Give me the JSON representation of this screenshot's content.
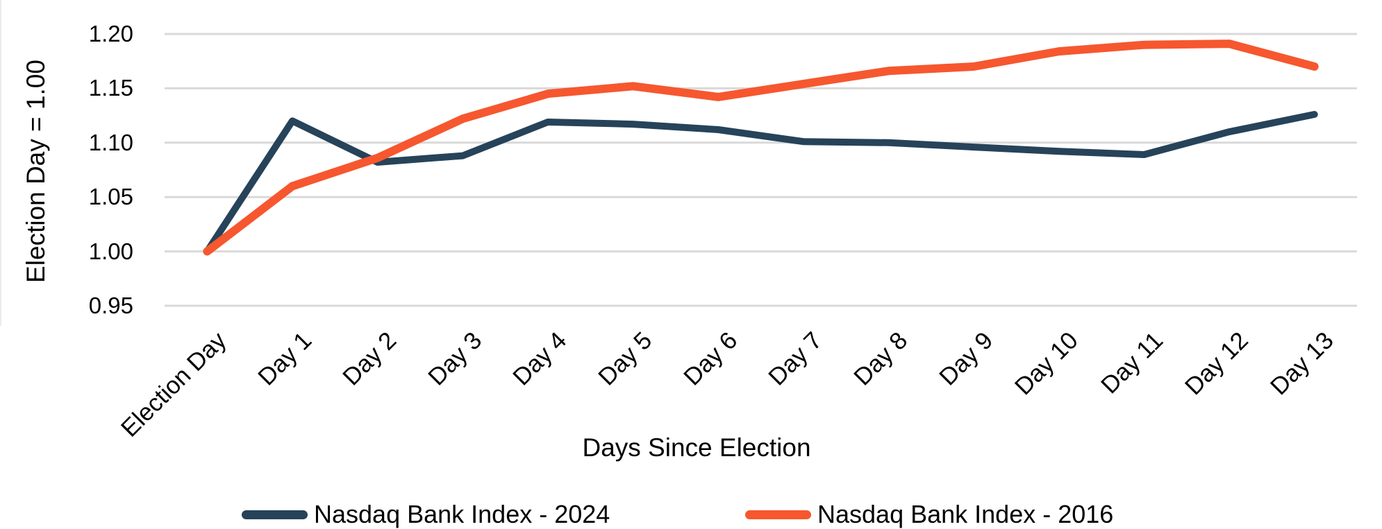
{
  "chart_data": {
    "type": "line",
    "categories": [
      "Election Day",
      "Day 1",
      "Day 2",
      "Day 3",
      "Day 4",
      "Day 5",
      "Day 6",
      "Day 7",
      "Day 8",
      "Day 9",
      "Day 10",
      "Day 11",
      "Day 12",
      "Day 13"
    ],
    "series": [
      {
        "name": "Nasdaq Bank Index - 2024",
        "color": "#26435A",
        "values": [
          1.0,
          1.12,
          1.082,
          1.088,
          1.119,
          1.117,
          1.112,
          1.101,
          1.1,
          1.096,
          1.092,
          1.089,
          1.11,
          1.126
        ]
      },
      {
        "name": "Nasdaq Bank Index - 2016",
        "color": "#F6572F",
        "values": [
          1.0,
          1.06,
          1.086,
          1.122,
          1.145,
          1.152,
          1.142,
          1.154,
          1.166,
          1.17,
          1.184,
          1.19,
          1.191,
          1.17
        ]
      }
    ],
    "title": "",
    "xlabel": "Days Since Election",
    "ylabel": "Election Day = 1.00",
    "ylim": [
      0.95,
      1.2
    ],
    "yticks": [
      "1.20",
      "1.15",
      "1.10",
      "1.05",
      "1.00",
      "0.95"
    ],
    "grid": true,
    "gridline_color": "#D9D9D9",
    "legend_position": "bottom"
  },
  "colors": {
    "background": "#FFFFFF",
    "text": "#000000"
  }
}
